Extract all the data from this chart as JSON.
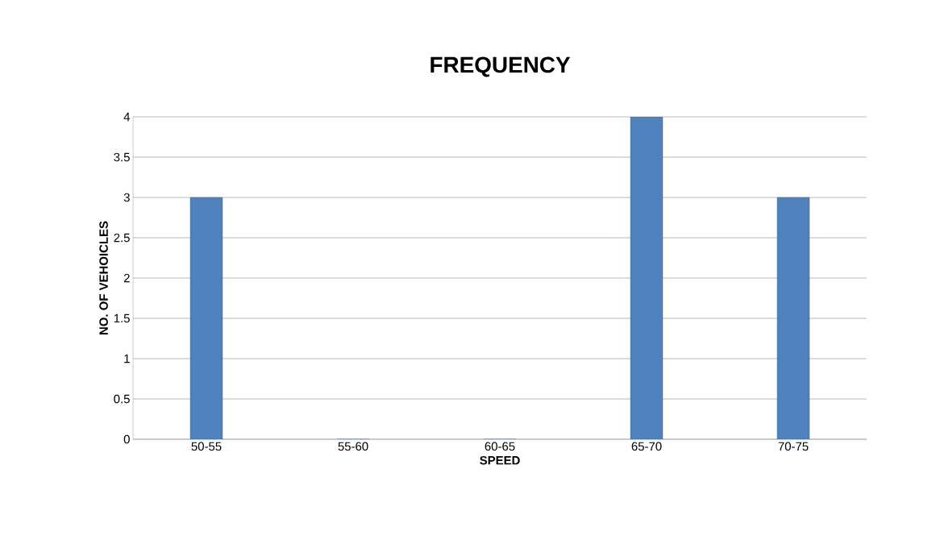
{
  "chart_data": {
    "type": "bar",
    "title": "FREQUENCY",
    "xlabel": "SPEED",
    "ylabel": "NO. OF VEHOICLES",
    "categories": [
      "50-55",
      "55-60",
      "60-65",
      "65-70",
      "70-75"
    ],
    "values": [
      3,
      0,
      0,
      4,
      3
    ],
    "color": "#4f81bd",
    "ylim": [
      0,
      4
    ],
    "yticks": [
      0,
      0.5,
      1,
      1.5,
      2,
      2.5,
      3,
      3.5,
      4
    ],
    "grid": "y"
  }
}
